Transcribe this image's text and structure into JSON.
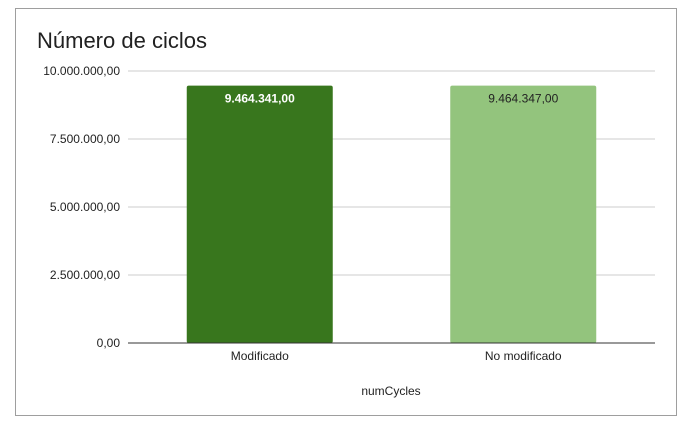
{
  "chart_data": {
    "type": "bar",
    "title": "Número de ciclos",
    "xlabel": "numCycles",
    "ylabel": "",
    "categories": [
      "Modificado",
      "No modificado"
    ],
    "values": [
      9464341,
      9464347
    ],
    "value_labels": [
      "9.464.341,00",
      "9.464.347,00"
    ],
    "bar_colors": [
      "#38761d",
      "#93c47d"
    ],
    "label_colors": [
      "#ffffff",
      "#222222"
    ],
    "label_bold": [
      true,
      false
    ],
    "ylim": [
      0,
      10000000
    ],
    "yticks": [
      0,
      2500000,
      5000000,
      7500000,
      10000000
    ],
    "ytick_labels": [
      "0,00",
      "2.500.000,00",
      "5.000.000,00",
      "7.500.000,00",
      "10.000.000,00"
    ],
    "grid": true,
    "legend": "none"
  }
}
